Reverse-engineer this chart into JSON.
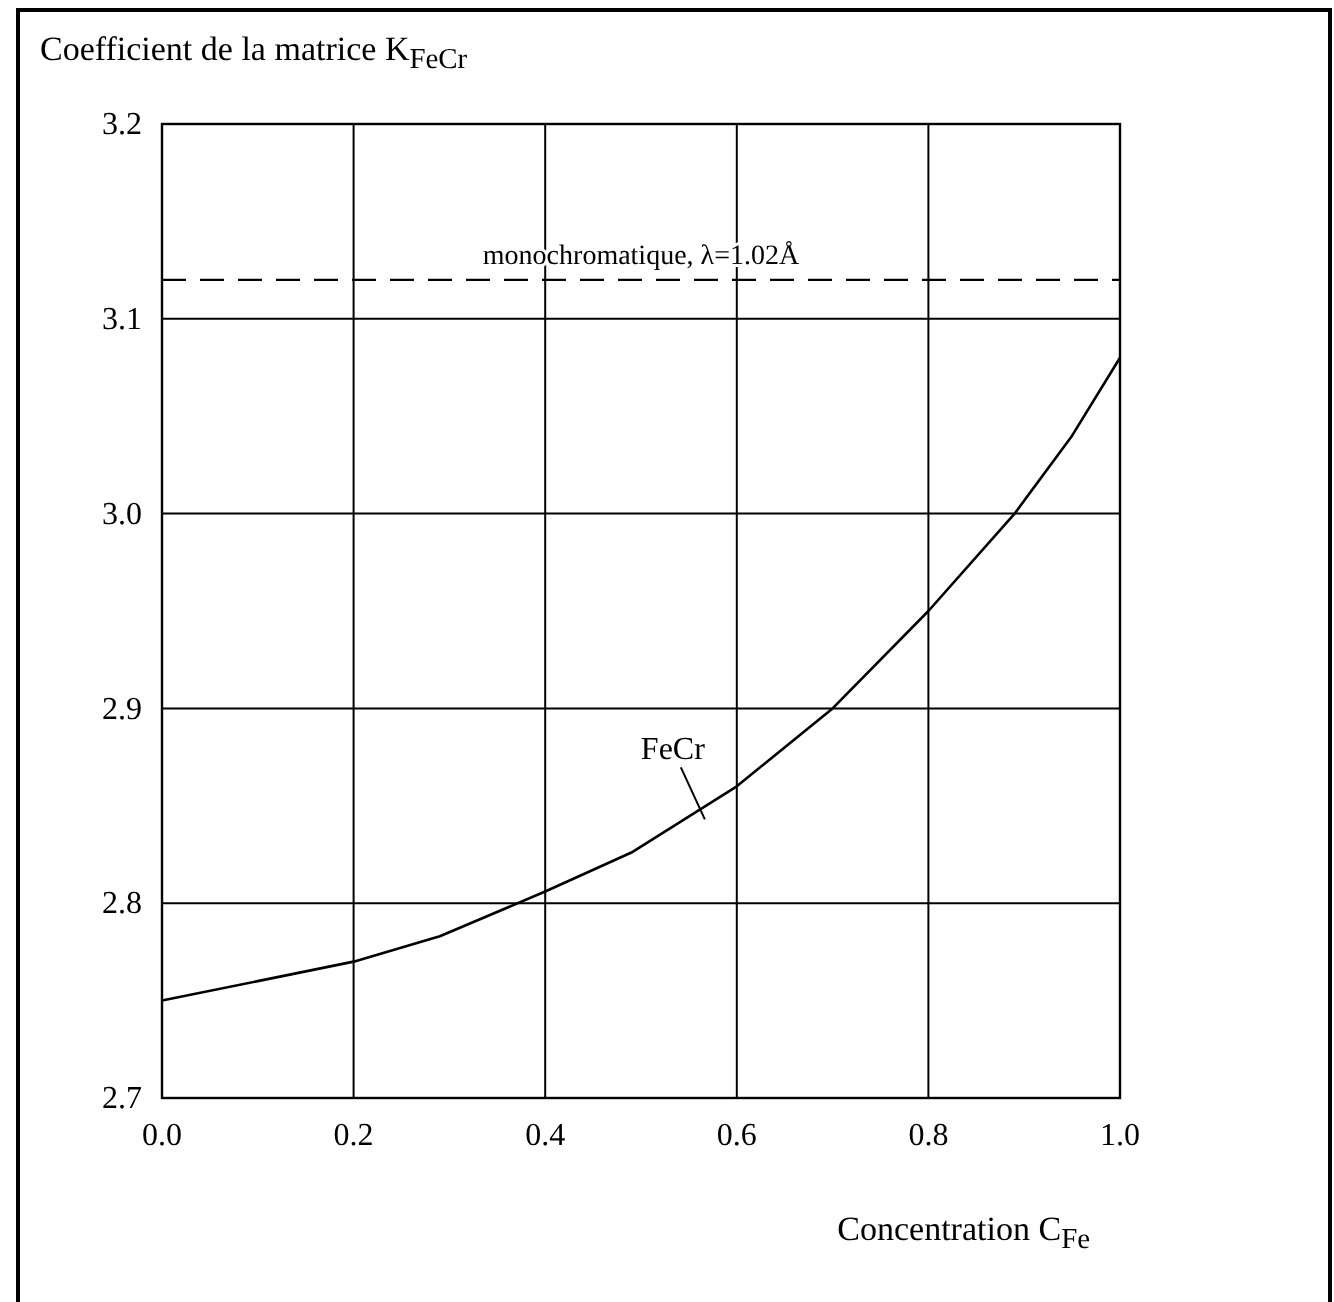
{
  "chart_data": {
    "type": "line",
    "title": "Coefficient de la matrice K$_{FeCr}$",
    "xlabel": "Concentration C$_{Fe}$",
    "x": [
      0,
      0.1,
      0.2,
      0.29,
      0.4,
      0.49,
      0.6,
      0.7,
      0.8,
      0.89,
      0.95,
      1.0
    ],
    "series": [
      {
        "name": "FeCr",
        "color": "#000000",
        "values": [
          2.75,
          2.76,
          2.77,
          2.783,
          2.806,
          2.826,
          2.86,
          2.9,
          2.95,
          3.0,
          3.04,
          3.08
        ]
      }
    ],
    "xlim": [
      0,
      1
    ],
    "xticks": [
      {
        "value": 0,
        "label": "0.0"
      },
      0.2,
      0.4,
      0.6,
      0.8,
      {
        "value": 1,
        "label": "1.0"
      }
    ],
    "ylim": [
      2.7,
      3.2
    ],
    "yticks": [
      2.7,
      2.8,
      2.9,
      {
        "value": 3,
        "label": "3.0"
      },
      3.1,
      3.2
    ],
    "grid": true,
    "marker": "none",
    "line_style": "solid",
    "annotations": [
      "monochromatique, λ=1.02Å"
    ],
    "ref_lines": [
      {
        "axis": "y",
        "value": 3.12,
        "color": "#000000",
        "line_style": "dashed"
      }
    ]
  }
}
